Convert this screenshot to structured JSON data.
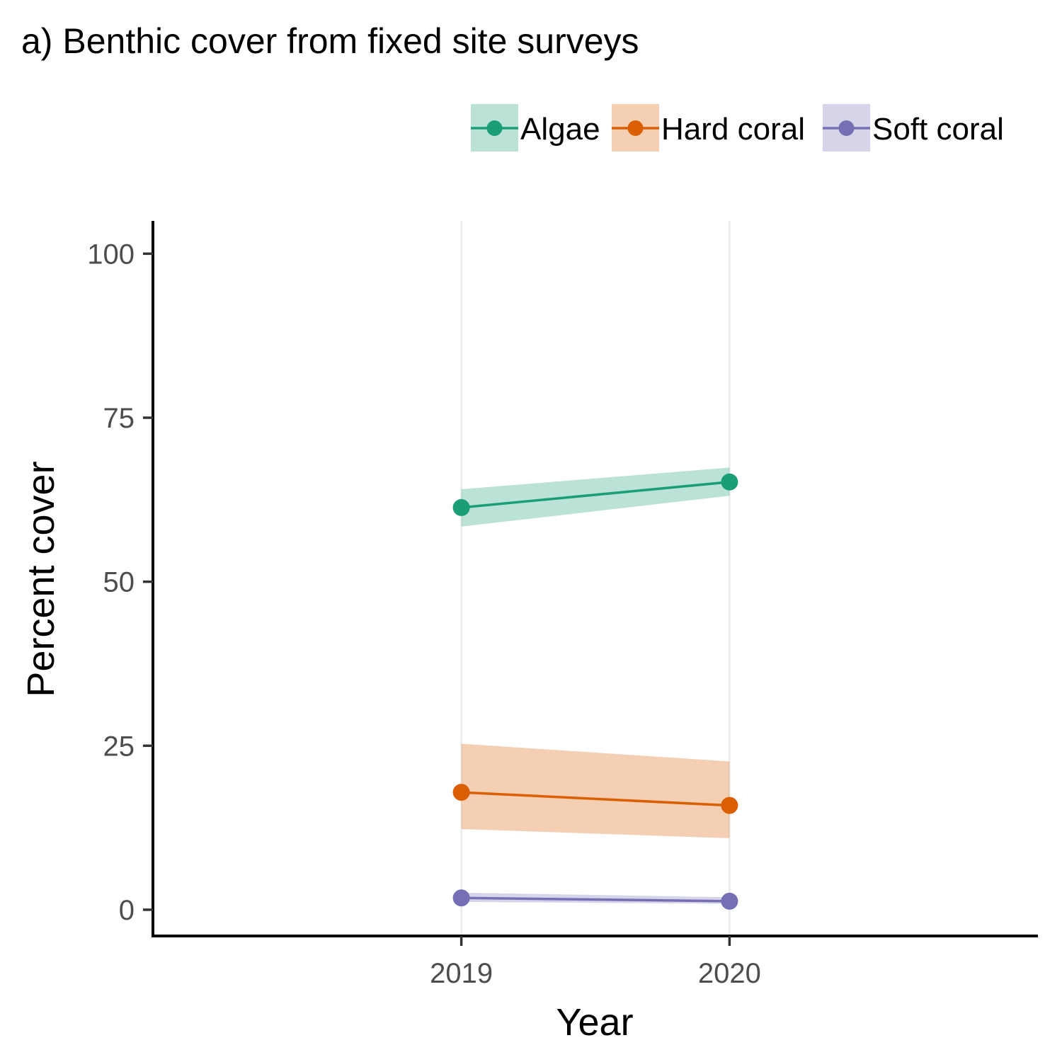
{
  "chart_data": {
    "type": "line",
    "title": "a) Benthic cover from fixed site surveys",
    "xlabel": "Year",
    "ylabel": "Percent cover",
    "x": [
      2019,
      2020
    ],
    "x_tick_labels": [
      "2019",
      "2020"
    ],
    "y_ticks": [
      0,
      25,
      50,
      75,
      100
    ],
    "y_tick_labels": [
      "0",
      "25",
      "50",
      "75",
      "100"
    ],
    "xlim": [
      2017.85,
      2021.15
    ],
    "ylim": [
      -4,
      105
    ],
    "grid": "vertical major lines only",
    "legend_position": "top-right",
    "series": [
      {
        "name": "Algae",
        "color": "#1b9e77",
        "values": [
          61.3,
          65.2
        ],
        "lower": [
          58.4,
          63.1
        ],
        "upper": [
          64.1,
          67.4
        ]
      },
      {
        "name": "Hard coral",
        "color": "#d95f02",
        "values": [
          17.9,
          15.9
        ],
        "lower": [
          12.3,
          10.9
        ],
        "upper": [
          25.3,
          22.6
        ]
      },
      {
        "name": "Soft coral",
        "color": "#7570b3",
        "values": [
          1.8,
          1.3
        ],
        "lower": [
          1.2,
          0.9
        ],
        "upper": [
          2.6,
          1.9
        ]
      }
    ]
  }
}
